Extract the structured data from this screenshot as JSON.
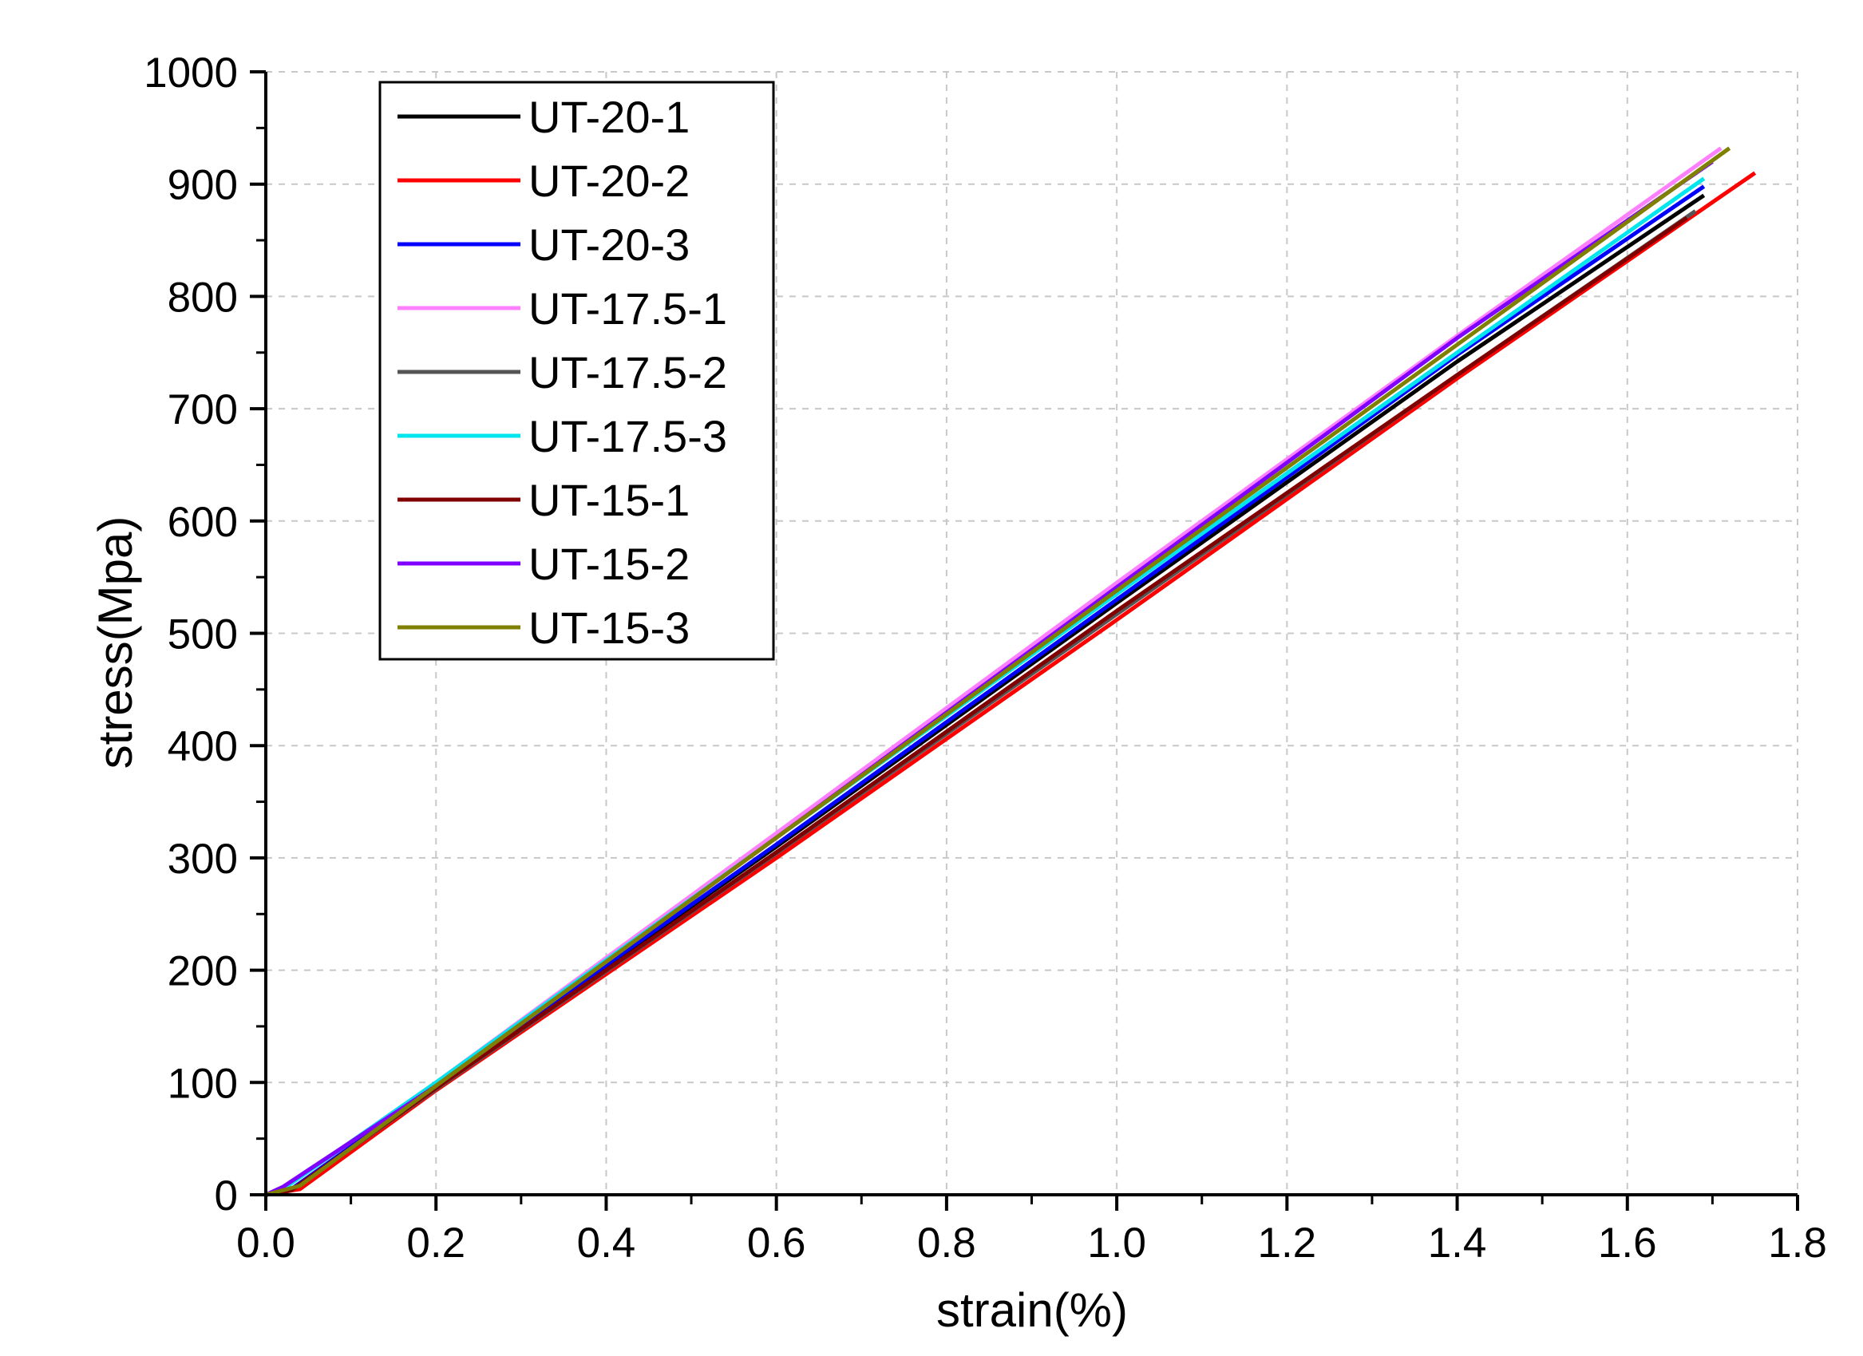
{
  "chart_data": {
    "type": "line",
    "title": "",
    "xlabel": "strain(%)",
    "ylabel": "stress(Mpa)",
    "xlim": [
      0,
      1.8
    ],
    "ylim": [
      0,
      1000
    ],
    "xticks": [
      "0.0",
      "0.2",
      "0.4",
      "0.6",
      "0.8",
      "1.0",
      "1.2",
      "1.4",
      "1.6",
      "1.8"
    ],
    "yticks": [
      "0",
      "100",
      "200",
      "300",
      "400",
      "500",
      "600",
      "700",
      "800",
      "900",
      "1000"
    ],
    "grid": true,
    "legend_position": "top-left",
    "series": [
      {
        "name": "UT-20-1",
        "color": "#000000",
        "x": [
          0,
          0.03,
          0.2,
          0.6,
          1.0,
          1.4,
          1.69
        ],
        "y": [
          0,
          4,
          97,
          310,
          527,
          742,
          890
        ]
      },
      {
        "name": "UT-20-2",
        "color": "#ff0000",
        "x": [
          0,
          0.04,
          0.2,
          0.6,
          1.0,
          1.4,
          1.75
        ],
        "y": [
          0,
          5,
          93,
          300,
          512,
          727,
          910
        ]
      },
      {
        "name": "UT-20-3",
        "color": "#0000ff",
        "x": [
          0,
          0.03,
          0.2,
          0.6,
          1.0,
          1.4,
          1.69
        ],
        "y": [
          0,
          5,
          97,
          312,
          530,
          748,
          898
        ]
      },
      {
        "name": "UT-17.5-1",
        "color": "#ff80ff",
        "x": [
          0,
          0.02,
          0.2,
          0.6,
          1.0,
          1.4,
          1.71
        ],
        "y": [
          0,
          5,
          100,
          322,
          545,
          765,
          932
        ]
      },
      {
        "name": "UT-17.5-2",
        "color": "#555555",
        "x": [
          0,
          0.03,
          0.2,
          0.6,
          1.0,
          1.4,
          1.68
        ],
        "y": [
          0,
          4,
          94,
          304,
          517,
          730,
          876
        ]
      },
      {
        "name": "UT-17.5-3",
        "color": "#00e5ee",
        "x": [
          0,
          0.02,
          0.2,
          0.6,
          1.0,
          1.4,
          1.69
        ],
        "y": [
          0,
          5,
          100,
          318,
          535,
          750,
          905
        ]
      },
      {
        "name": "UT-15-1",
        "color": "#800000",
        "x": [
          0,
          0.03,
          0.2,
          0.6,
          1.0,
          1.4,
          1.67
        ],
        "y": [
          0,
          4,
          95,
          305,
          520,
          730,
          870
        ]
      },
      {
        "name": "UT-15-2",
        "color": "#8000ff",
        "x": [
          0,
          0.02,
          0.2,
          0.6,
          1.0,
          1.4,
          1.7
        ],
        "y": [
          0,
          7,
          97,
          318,
          541,
          763,
          920
        ]
      },
      {
        "name": "UT-15-3",
        "color": "#808000",
        "x": [
          0,
          0.04,
          0.2,
          0.6,
          1.0,
          1.4,
          1.72
        ],
        "y": [
          0,
          8,
          97,
          318,
          538,
          757,
          932
        ]
      }
    ]
  }
}
